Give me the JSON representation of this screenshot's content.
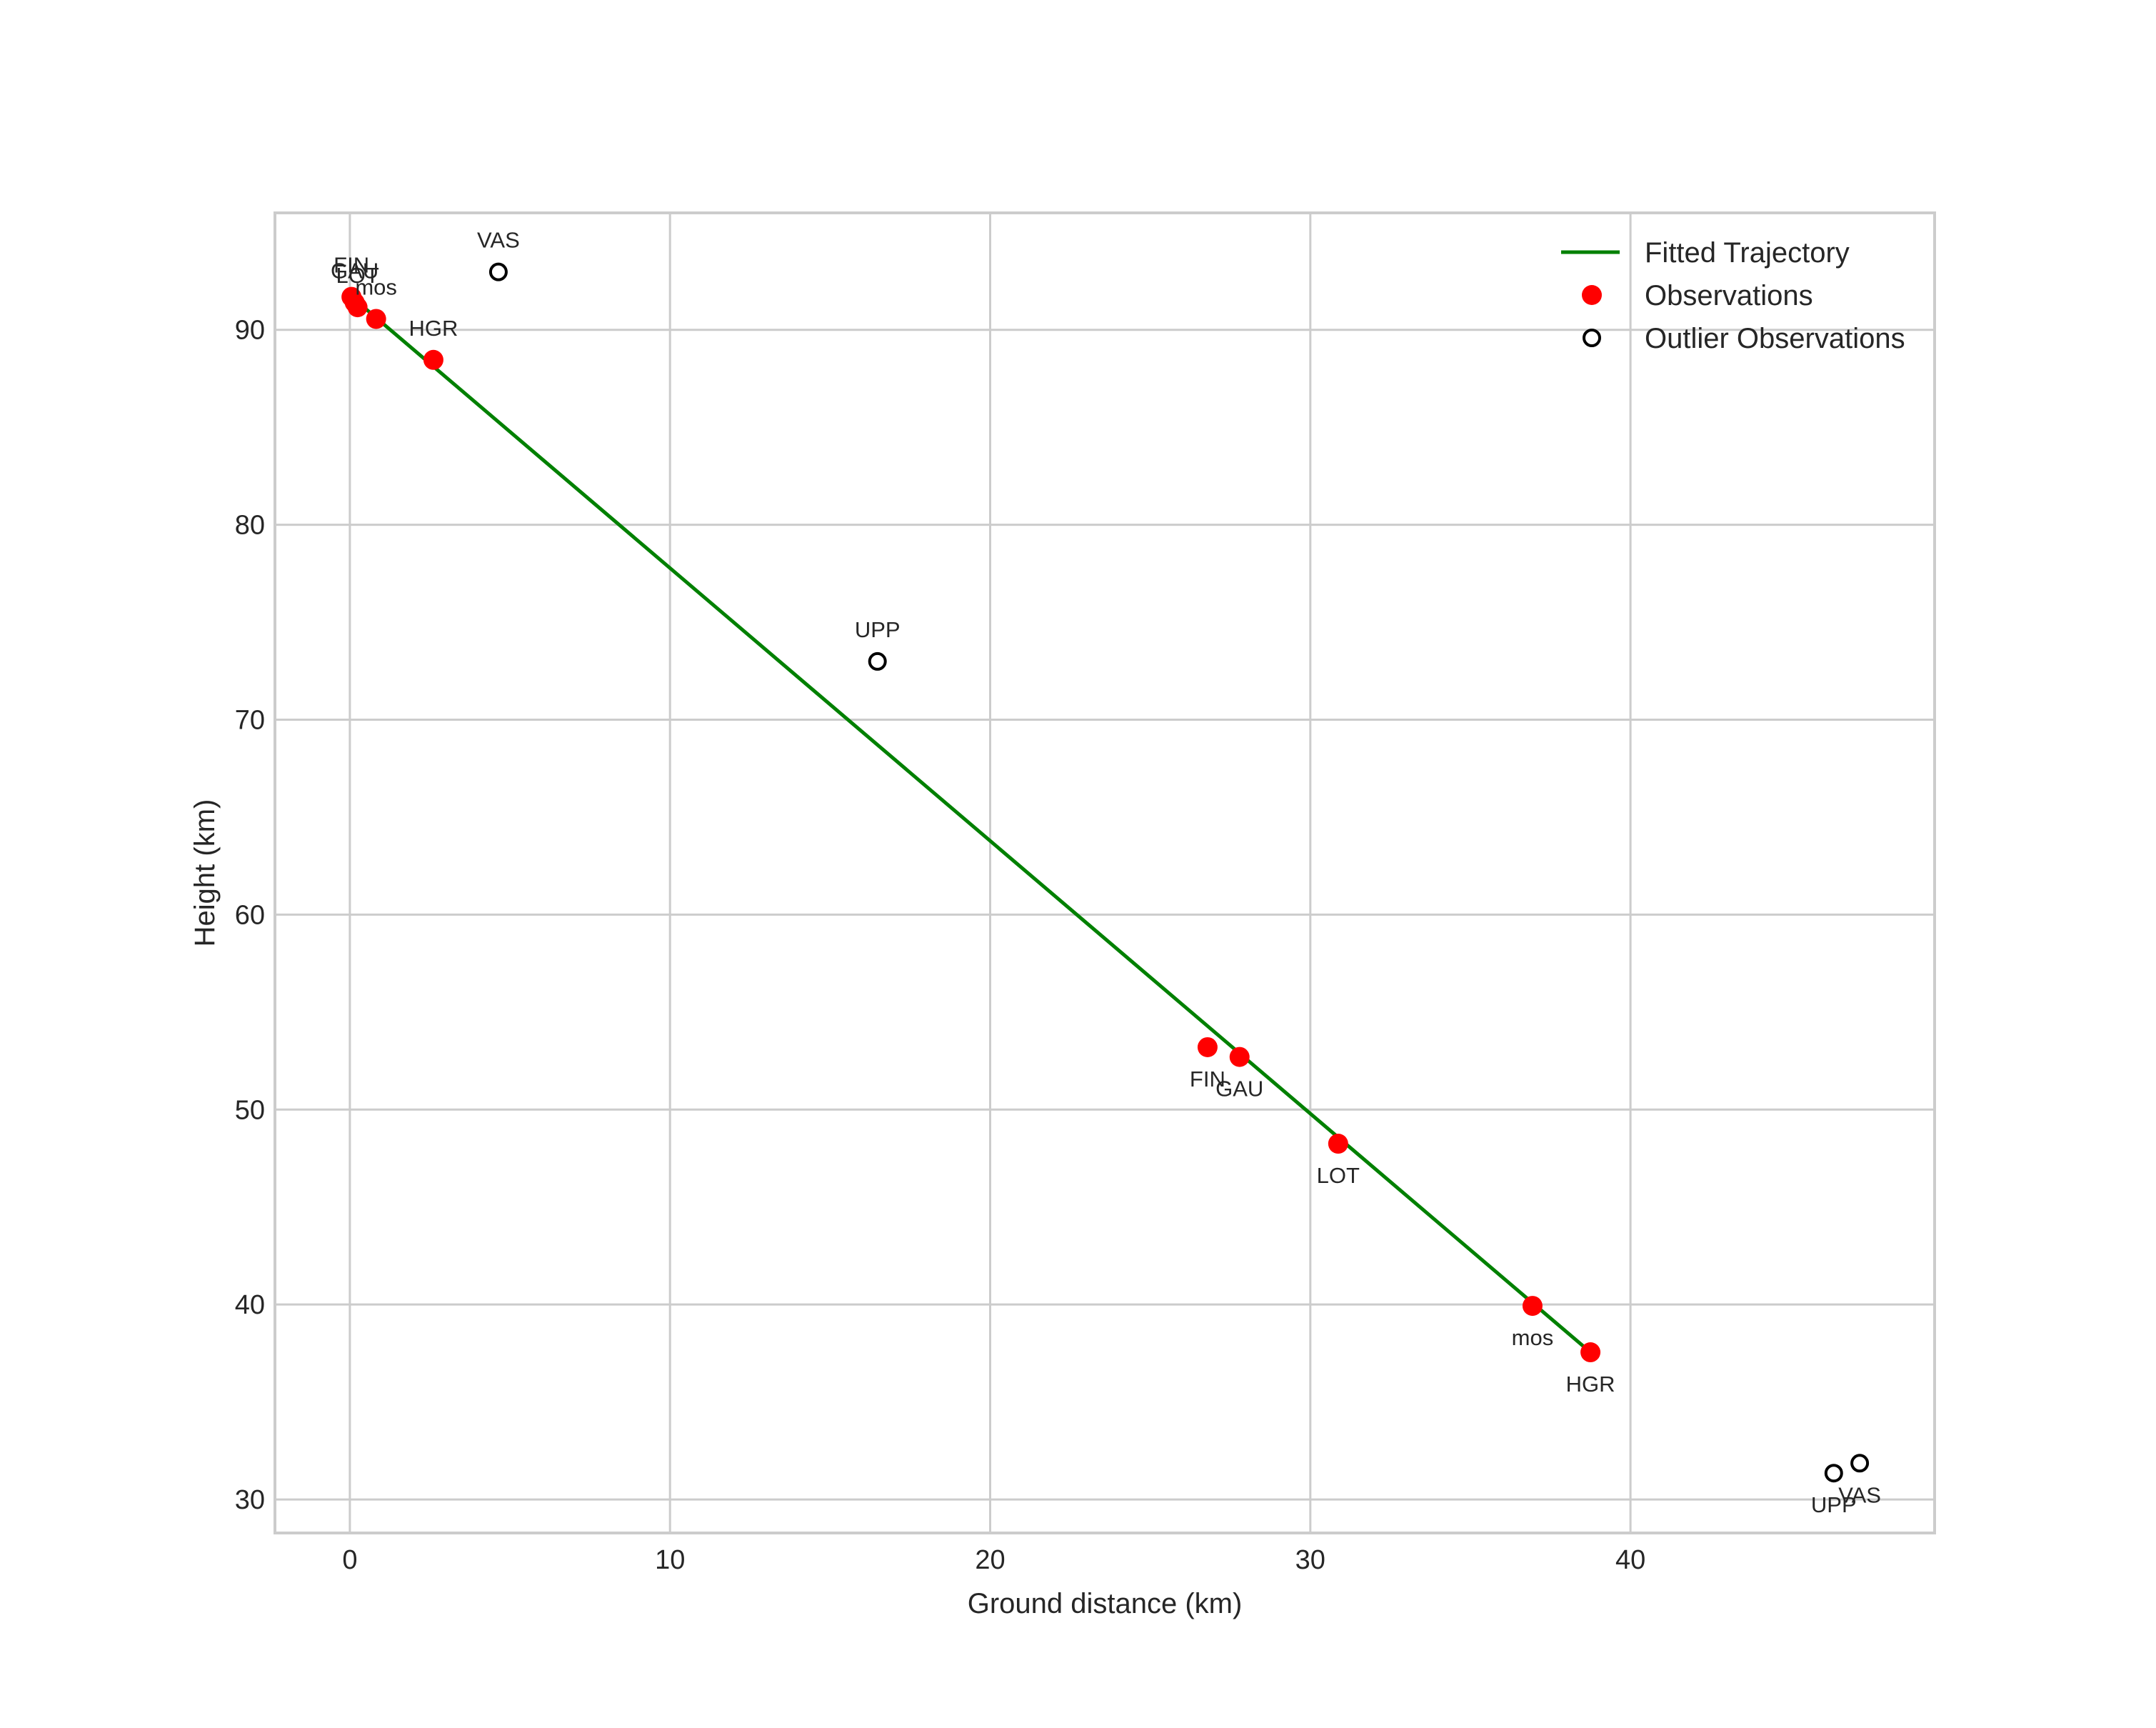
{
  "chart_data": {
    "type": "scatter",
    "title": "",
    "xlabel": "Ground distance (km)",
    "ylabel": "Height (km)",
    "xlim": [
      -2.34,
      49.5
    ],
    "ylim": [
      28.28,
      96.0
    ],
    "grid": true,
    "legend_position": "upper right",
    "xticks": [
      0,
      10,
      20,
      30,
      40
    ],
    "yticks": [
      30,
      40,
      50,
      60,
      70,
      80,
      90
    ],
    "colors": {
      "trajectory": "#008000",
      "observation": "#ff0000",
      "outlier": "#000000",
      "grid": "#cccccc",
      "text": "#262626"
    },
    "series": [
      {
        "name": "Fitted Trajectory",
        "type": "line",
        "points": [
          [
            0.05,
            91.7
          ],
          [
            38.75,
            37.55
          ]
        ]
      },
      {
        "name": "Observations",
        "type": "scatter",
        "points": [
          {
            "label": "FIN",
            "x": 0.05,
            "y": 91.69,
            "label_pos": "above"
          },
          {
            "label": "GAU",
            "x": 0.15,
            "y": 91.4,
            "label_pos": "above"
          },
          {
            "label": "LOT",
            "x": 0.24,
            "y": 91.16,
            "label_pos": "above"
          },
          {
            "label": "mos",
            "x": 0.82,
            "y": 90.56,
            "label_pos": "above"
          },
          {
            "label": "HGR",
            "x": 2.61,
            "y": 88.46,
            "label_pos": "above"
          },
          {
            "label": "FIN",
            "x": 26.79,
            "y": 53.2,
            "label_pos": "below"
          },
          {
            "label": "GAU",
            "x": 27.79,
            "y": 52.7,
            "label_pos": "below"
          },
          {
            "label": "LOT",
            "x": 30.87,
            "y": 48.25,
            "label_pos": "below"
          },
          {
            "label": "mos",
            "x": 36.94,
            "y": 39.93,
            "label_pos": "below"
          },
          {
            "label": "HGR",
            "x": 38.75,
            "y": 37.55,
            "label_pos": "below"
          }
        ]
      },
      {
        "name": "Outlier Observations",
        "type": "scatter",
        "points": [
          {
            "label": "VAS",
            "x": 4.64,
            "y": 92.97,
            "label_pos": "above"
          },
          {
            "label": "UPP",
            "x": 16.48,
            "y": 72.99,
            "label_pos": "above"
          },
          {
            "label": "UPP",
            "x": 46.35,
            "y": 31.35,
            "label_pos": "below"
          },
          {
            "label": "VAS",
            "x": 47.16,
            "y": 31.86,
            "label_pos": "below"
          }
        ]
      }
    ]
  },
  "legend": {
    "items": [
      {
        "label": "Fitted Trajectory",
        "icon": "line-icon"
      },
      {
        "label": "Observations",
        "icon": "filled-circle-icon"
      },
      {
        "label": "Outlier Observations",
        "icon": "hollow-circle-icon"
      }
    ]
  }
}
